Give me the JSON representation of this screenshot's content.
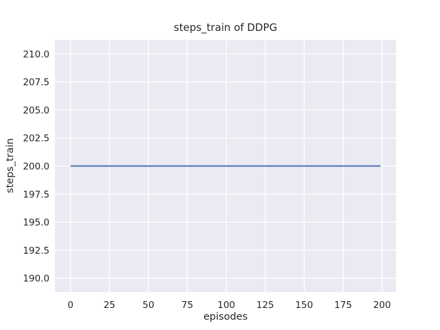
{
  "chart_data": {
    "type": "line",
    "title": "steps_train of DDPG",
    "xlabel": "episodes",
    "ylabel": "steps_train",
    "x_tick_values": [
      0,
      25,
      50,
      75,
      100,
      125,
      150,
      175,
      200
    ],
    "x_tick_labels": [
      "0",
      "25",
      "50",
      "75",
      "100",
      "125",
      "150",
      "175",
      "200"
    ],
    "y_tick_values": [
      190.0,
      192.5,
      195.0,
      197.5,
      200.0,
      202.5,
      205.0,
      207.5,
      210.0
    ],
    "y_tick_labels": [
      "190.0",
      "192.5",
      "195.0",
      "197.5",
      "200.0",
      "202.5",
      "205.0",
      "207.5",
      "210.0"
    ],
    "xlim": [
      -9.95,
      208.95
    ],
    "ylim": [
      188.75,
      211.25
    ],
    "grid": true,
    "legend": false,
    "series": [
      {
        "name": "steps_train",
        "x": [
          0,
          199
        ],
        "y": [
          200,
          200
        ],
        "constant_value": 200,
        "color": "#4C72B0"
      }
    ],
    "colors": {
      "figure_background": "#FFFFFF",
      "axes_background": "#EAEAF2",
      "gridline": "#FFFFFF",
      "line": "#4C72B0",
      "text": "#262626"
    }
  }
}
